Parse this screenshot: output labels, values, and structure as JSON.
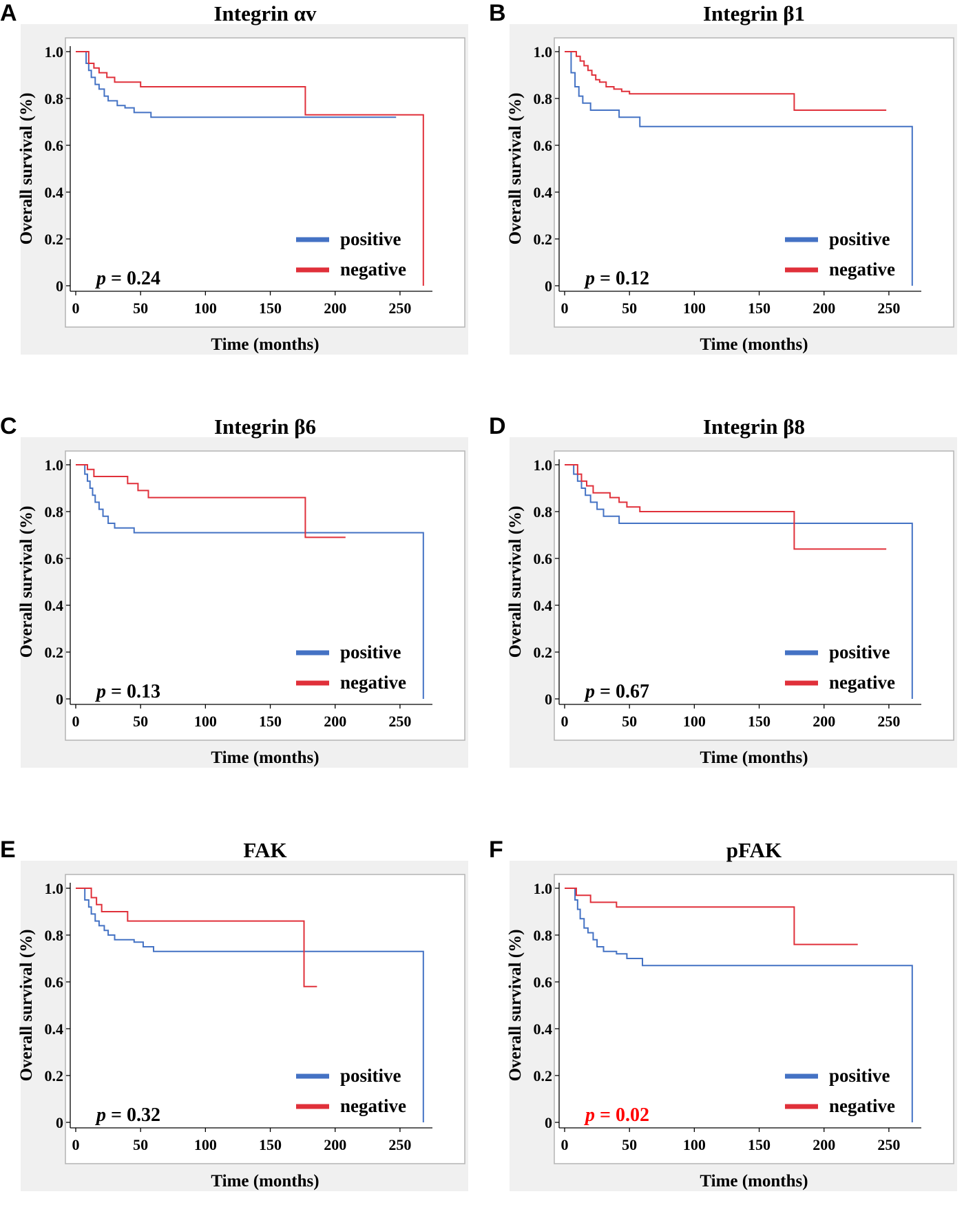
{
  "colors": {
    "positive": "#4472c4",
    "negative": "#e0303a",
    "significant": "#ff0000"
  },
  "chart_data": [
    {
      "type": "line",
      "letter": "A",
      "title": "Integrin αv",
      "xlabel": "Time (months)",
      "ylabel": "Overall survival (%)",
      "xlim": [
        0,
        275
      ],
      "ylim": [
        0,
        1.0
      ],
      "xticks": [
        "0",
        "50",
        "100",
        "150",
        "200",
        "250"
      ],
      "yticks": [
        "0",
        "0.2",
        "0.4",
        "0.6",
        "0.8",
        "1.0"
      ],
      "p_value": "0.24",
      "p_significant": false,
      "legend": [
        "positive",
        "negative"
      ],
      "series": [
        {
          "name": "positive",
          "x": [
            0,
            8,
            10,
            12,
            15,
            18,
            22,
            25,
            32,
            38,
            45,
            58,
            247
          ],
          "y": [
            1.0,
            0.95,
            0.92,
            0.89,
            0.86,
            0.84,
            0.81,
            0.79,
            0.77,
            0.76,
            0.74,
            0.72,
            0.72
          ]
        },
        {
          "name": "negative",
          "x": [
            0,
            10,
            14,
            18,
            24,
            30,
            50,
            177,
            268,
            268
          ],
          "y": [
            1.0,
            0.95,
            0.93,
            0.91,
            0.89,
            0.87,
            0.85,
            0.73,
            0.73,
            0.0
          ]
        }
      ]
    },
    {
      "type": "line",
      "letter": "B",
      "title": "Integrin β1",
      "xlabel": "Time (months)",
      "ylabel": "Overall survival (%)",
      "xlim": [
        0,
        275
      ],
      "ylim": [
        0,
        1.0
      ],
      "xticks": [
        "0",
        "50",
        "100",
        "150",
        "200",
        "250"
      ],
      "yticks": [
        "0",
        "0.2",
        "0.4",
        "0.6",
        "0.8",
        "1.0"
      ],
      "p_value": "0.12",
      "p_significant": false,
      "legend": [
        "positive",
        "negative"
      ],
      "series": [
        {
          "name": "positive",
          "x": [
            0,
            5,
            8,
            11,
            14,
            20,
            42,
            58,
            268,
            268
          ],
          "y": [
            1.0,
            0.91,
            0.85,
            0.81,
            0.78,
            0.75,
            0.72,
            0.68,
            0.68,
            0.0
          ]
        },
        {
          "name": "negative",
          "x": [
            0,
            9,
            12,
            15,
            18,
            21,
            24,
            27,
            32,
            38,
            44,
            50,
            177,
            248
          ],
          "y": [
            1.0,
            0.98,
            0.96,
            0.94,
            0.92,
            0.9,
            0.88,
            0.87,
            0.85,
            0.84,
            0.83,
            0.82,
            0.75,
            0.75
          ]
        }
      ]
    },
    {
      "type": "line",
      "letter": "C",
      "title": "Integrin β6",
      "xlabel": "Time (months)",
      "ylabel": "Overall survival (%)",
      "xlim": [
        0,
        275
      ],
      "ylim": [
        0,
        1.0
      ],
      "xticks": [
        "0",
        "50",
        "100",
        "150",
        "200",
        "250"
      ],
      "yticks": [
        "0",
        "0.2",
        "0.4",
        "0.6",
        "0.8",
        "1.0"
      ],
      "p_value": "0.13",
      "p_significant": false,
      "legend": [
        "positive",
        "negative"
      ],
      "series": [
        {
          "name": "positive",
          "x": [
            0,
            7,
            9,
            11,
            13,
            15,
            18,
            21,
            25,
            30,
            45,
            268,
            268
          ],
          "y": [
            1.0,
            0.96,
            0.93,
            0.9,
            0.87,
            0.84,
            0.81,
            0.78,
            0.75,
            0.73,
            0.71,
            0.71,
            0.0
          ]
        },
        {
          "name": "negative",
          "x": [
            0,
            9,
            14,
            40,
            48,
            56,
            177,
            208
          ],
          "y": [
            1.0,
            0.98,
            0.95,
            0.92,
            0.89,
            0.86,
            0.69,
            0.69
          ]
        }
      ]
    },
    {
      "type": "line",
      "letter": "D",
      "title": "Integrin β8",
      "xlabel": "Time (months)",
      "ylabel": "Overall survival (%)",
      "xlim": [
        0,
        275
      ],
      "ylim": [
        0,
        1.0
      ],
      "xticks": [
        "0",
        "50",
        "100",
        "150",
        "200",
        "250"
      ],
      "yticks": [
        "0",
        "0.2",
        "0.4",
        "0.6",
        "0.8",
        "1.0"
      ],
      "p_value": "0.67",
      "p_significant": false,
      "legend": [
        "positive",
        "negative"
      ],
      "series": [
        {
          "name": "positive",
          "x": [
            0,
            7,
            10,
            13,
            16,
            20,
            25,
            30,
            42,
            268,
            268
          ],
          "y": [
            1.0,
            0.96,
            0.93,
            0.9,
            0.87,
            0.84,
            0.81,
            0.78,
            0.75,
            0.75,
            0.0
          ]
        },
        {
          "name": "negative",
          "x": [
            0,
            10,
            13,
            17,
            22,
            35,
            42,
            48,
            58,
            177,
            248
          ],
          "y": [
            1.0,
            0.96,
            0.93,
            0.91,
            0.88,
            0.86,
            0.84,
            0.82,
            0.8,
            0.64,
            0.64
          ]
        }
      ]
    },
    {
      "type": "line",
      "letter": "E",
      "title": "FAK",
      "xlabel": "Time (months)",
      "ylabel": "Overall survival (%)",
      "xlim": [
        0,
        275
      ],
      "ylim": [
        0,
        1.0
      ],
      "xticks": [
        "0",
        "50",
        "100",
        "150",
        "200",
        "250"
      ],
      "yticks": [
        "0",
        "0.2",
        "0.4",
        "0.6",
        "0.8",
        "1.0"
      ],
      "p_value": "0.32",
      "p_significant": false,
      "legend": [
        "positive",
        "negative"
      ],
      "series": [
        {
          "name": "positive",
          "x": [
            0,
            7,
            10,
            12,
            15,
            18,
            22,
            25,
            30,
            45,
            52,
            60,
            268,
            268
          ],
          "y": [
            1.0,
            0.95,
            0.92,
            0.89,
            0.86,
            0.84,
            0.82,
            0.8,
            0.78,
            0.77,
            0.75,
            0.73,
            0.73,
            0.0
          ]
        },
        {
          "name": "negative",
          "x": [
            0,
            12,
            16,
            20,
            40,
            176,
            186
          ],
          "y": [
            1.0,
            0.96,
            0.93,
            0.9,
            0.86,
            0.58,
            0.58
          ]
        }
      ]
    },
    {
      "type": "line",
      "letter": "F",
      "title": "pFAK",
      "xlabel": "Time (months)",
      "ylabel": "Overall survival (%)",
      "xlim": [
        0,
        275
      ],
      "ylim": [
        0,
        1.0
      ],
      "xticks": [
        "0",
        "50",
        "100",
        "150",
        "200",
        "250"
      ],
      "yticks": [
        "0",
        "0.2",
        "0.4",
        "0.6",
        "0.8",
        "1.0"
      ],
      "p_value": "0.02",
      "p_significant": true,
      "legend": [
        "positive",
        "negative"
      ],
      "series": [
        {
          "name": "positive",
          "x": [
            0,
            8,
            10,
            12,
            15,
            18,
            22,
            25,
            30,
            40,
            48,
            60,
            268,
            268
          ],
          "y": [
            1.0,
            0.95,
            0.91,
            0.87,
            0.83,
            0.81,
            0.78,
            0.75,
            0.73,
            0.72,
            0.7,
            0.67,
            0.67,
            0.0
          ]
        },
        {
          "name": "negative",
          "x": [
            0,
            9,
            20,
            40,
            177,
            226
          ],
          "y": [
            1.0,
            0.97,
            0.94,
            0.92,
            0.76,
            0.76
          ]
        }
      ]
    }
  ]
}
